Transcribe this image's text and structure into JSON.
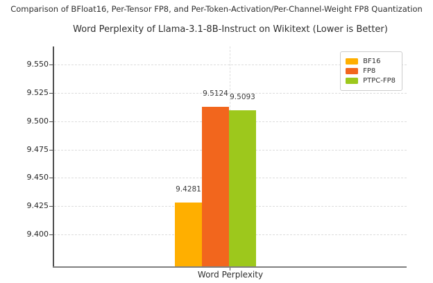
{
  "suptitle": "Comparison of BFloat16, Per-Tensor FP8, and Per-Token-Activation/Per-Channel-Weight FP8 Quantization",
  "chart_data": {
    "type": "bar",
    "title": "Word Perplexity of Llama-3.1-8B-Instruct on Wikitext (Lower is Better)",
    "xlabel": "Word Perplexity",
    "categories": [
      "Word Perplexity"
    ],
    "series": [
      {
        "name": "BF16",
        "values": [
          9.4281
        ],
        "color": "#FFAF00"
      },
      {
        "name": "FP8",
        "values": [
          9.5124
        ],
        "color": "#F2661D"
      },
      {
        "name": "PTPC-FP8",
        "values": [
          9.5093
        ],
        "color": "#9DC81C"
      }
    ],
    "value_labels": [
      "9.4281",
      "9.5124",
      "9.5093"
    ],
    "ylim": [
      9.3721,
      9.5657
    ],
    "yticks": [
      "9.400",
      "9.425",
      "9.450",
      "9.475",
      "9.500",
      "9.525",
      "9.550"
    ],
    "grid": {
      "horizontal": true,
      "vertical_at_tick": true,
      "style": "dashed",
      "color": "#dcdcdc"
    },
    "legend": {
      "position": "upper right",
      "entries": [
        "BF16",
        "FP8",
        "PTPC-FP8"
      ]
    },
    "text_color": "#2e2e2e"
  }
}
